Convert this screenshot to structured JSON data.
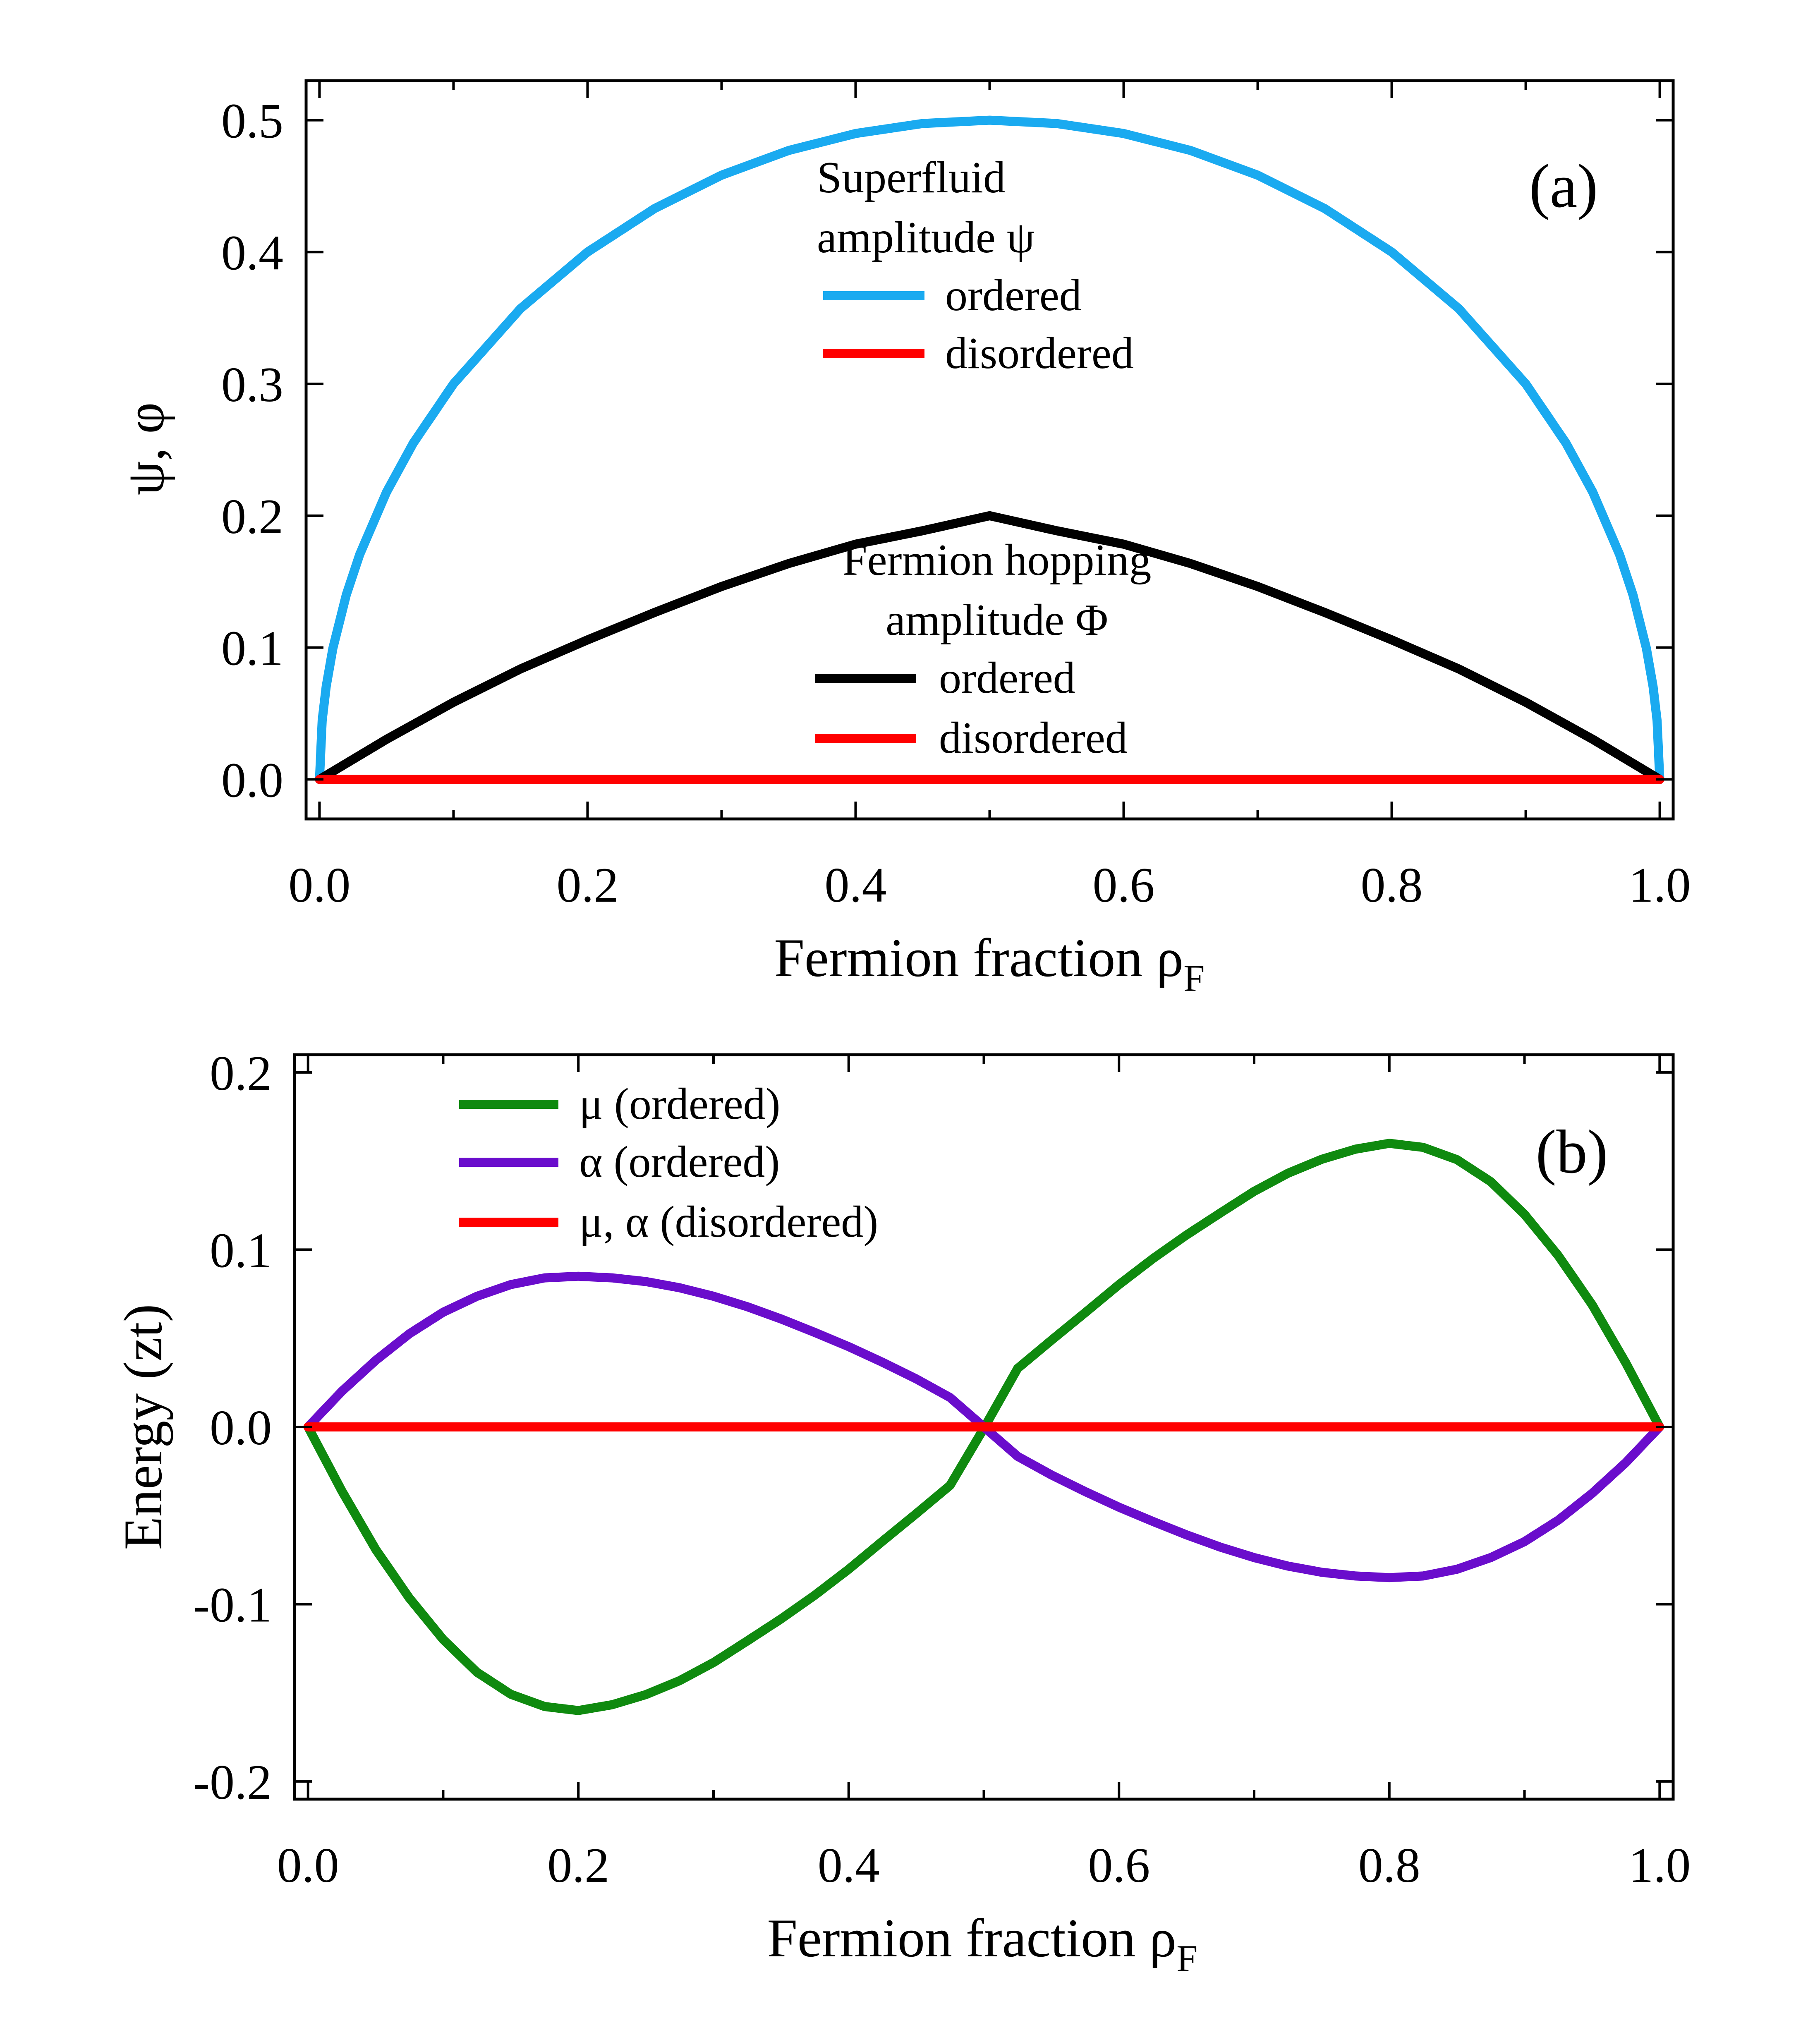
{
  "chart_data": [
    {
      "panel": "(a)",
      "type": "line",
      "xlabel": "Fermion fraction ρ",
      "xlabel_sub": "F",
      "ylabel": "ψ, φ",
      "xlim": [
        -0.01,
        1.01
      ],
      "ylim": [
        -0.03,
        0.53
      ],
      "xticks": [
        0.0,
        0.2,
        0.4,
        0.6,
        0.8,
        1.0
      ],
      "xtick_labels": [
        "0.0",
        "0.2",
        "0.4",
        "0.6",
        "0.8",
        "1.0"
      ],
      "yticks": [
        0.0,
        0.1,
        0.2,
        0.3,
        0.4,
        0.5
      ],
      "ytick_labels": [
        "0.0",
        "0.1",
        "0.2",
        "0.3",
        "0.4",
        "0.5"
      ],
      "legend_groups": [
        {
          "title_lines": [
            "Superfluid",
            "amplitude ψ"
          ],
          "entries": [
            "ordered",
            "disordered"
          ]
        },
        {
          "title_lines": [
            "Fermion hopping",
            "amplitude Φ"
          ],
          "entries": [
            "ordered",
            "disordered"
          ]
        }
      ],
      "series": [
        {
          "name": "ψ ordered",
          "color": "#1aaaf0",
          "x": [
            0,
            0.002,
            0.005,
            0.01,
            0.02,
            0.03,
            0.05,
            0.07,
            0.1,
            0.15,
            0.2,
            0.25,
            0.3,
            0.35,
            0.4,
            0.45,
            0.5,
            0.55,
            0.6,
            0.65,
            0.7,
            0.75,
            0.8,
            0.85,
            0.9,
            0.93,
            0.95,
            0.97,
            0.98,
            0.99,
            0.995,
            0.998,
            1.0
          ],
          "y": [
            0,
            0.0447,
            0.0705,
            0.0995,
            0.14,
            0.1706,
            0.2179,
            0.2551,
            0.3,
            0.3571,
            0.4,
            0.433,
            0.4583,
            0.477,
            0.4899,
            0.4975,
            0.5,
            0.4975,
            0.4899,
            0.477,
            0.4583,
            0.433,
            0.4,
            0.3571,
            0.3,
            0.2551,
            0.2179,
            0.1706,
            0.14,
            0.0995,
            0.0705,
            0.0447,
            0
          ]
        },
        {
          "name": "ψ disordered",
          "color": "#ff0000",
          "x": [
            0,
            1
          ],
          "y": [
            0,
            0
          ]
        },
        {
          "name": "Φ ordered",
          "color": "#000000",
          "x": [
            0,
            0.05,
            0.1,
            0.15,
            0.2,
            0.25,
            0.3,
            0.35,
            0.4,
            0.45,
            0.5,
            0.55,
            0.6,
            0.65,
            0.7,
            0.75,
            0.8,
            0.85,
            0.9,
            0.95,
            1.0
          ],
          "y": [
            0,
            0.0304,
            0.0585,
            0.0838,
            0.1058,
            0.1266,
            0.1463,
            0.1637,
            0.1784,
            0.1886,
            0.2,
            0.1886,
            0.1784,
            0.1637,
            0.1463,
            0.1266,
            0.1058,
            0.0838,
            0.0585,
            0.0304,
            0
          ]
        },
        {
          "name": "Φ disordered",
          "color": "#ff0000",
          "x": [
            0,
            1
          ],
          "y": [
            0,
            0
          ]
        }
      ]
    },
    {
      "panel": "(b)",
      "type": "line",
      "xlabel": "Fermion fraction ρ",
      "xlabel_sub": "F",
      "ylabel": "Energy (zt)",
      "xlim": [
        -0.01,
        1.01
      ],
      "ylim": [
        -0.21,
        0.21
      ],
      "xticks": [
        0.0,
        0.2,
        0.4,
        0.6,
        0.8,
        1.0
      ],
      "xtick_labels": [
        "0.0",
        "0.2",
        "0.4",
        "0.6",
        "0.8",
        "1.0"
      ],
      "yticks": [
        -0.2,
        -0.1,
        0.0,
        0.1,
        0.2
      ],
      "ytick_labels": [
        "-0.2",
        "-0.1",
        "0.0",
        "0.1",
        "0.2"
      ],
      "legend": [
        "μ (ordered)",
        "α (ordered)",
        "μ, α (disordered)"
      ],
      "series": [
        {
          "name": "μ (ordered)",
          "color": "#0f8a0f",
          "x": [
            0,
            0.025,
            0.05,
            0.075,
            0.1,
            0.125,
            0.15,
            0.175,
            0.2,
            0.225,
            0.25,
            0.275,
            0.3,
            0.325,
            0.35,
            0.375,
            0.4,
            0.425,
            0.45,
            0.475,
            0.5,
            0.525,
            0.55,
            0.575,
            0.6,
            0.625,
            0.65,
            0.675,
            0.7,
            0.725,
            0.75,
            0.775,
            0.8,
            0.825,
            0.85,
            0.875,
            0.9,
            0.925,
            0.95,
            0.975,
            1.0
          ],
          "y": [
            0,
            -0.0361,
            -0.069,
            -0.0966,
            -0.1199,
            -0.1384,
            -0.1508,
            -0.1577,
            -0.16,
            -0.1567,
            -0.151,
            -0.1431,
            -0.1329,
            -0.1207,
            -0.1083,
            -0.0949,
            -0.0803,
            -0.0645,
            -0.0489,
            -0.033,
            -0.0008,
            0.033,
            0.0489,
            0.0645,
            0.0803,
            0.0949,
            0.1083,
            0.1207,
            0.1329,
            0.1431,
            0.151,
            0.1567,
            0.16,
            0.1577,
            0.1508,
            0.1384,
            0.1199,
            0.0966,
            0.069,
            0.0361,
            0
          ]
        },
        {
          "name": "α (ordered)",
          "color": "#6a0dcc",
          "x": [
            0,
            0.025,
            0.05,
            0.075,
            0.1,
            0.125,
            0.15,
            0.175,
            0.2,
            0.225,
            0.25,
            0.275,
            0.3,
            0.325,
            0.35,
            0.375,
            0.4,
            0.425,
            0.45,
            0.475,
            0.5,
            0.525,
            0.55,
            0.575,
            0.6,
            0.625,
            0.65,
            0.675,
            0.7,
            0.725,
            0.75,
            0.775,
            0.8,
            0.825,
            0.85,
            0.875,
            0.9,
            0.925,
            0.95,
            0.975,
            1.0
          ],
          "y": [
            0,
            0.0201,
            0.0375,
            0.0526,
            0.0647,
            0.0737,
            0.0803,
            0.0841,
            0.085,
            0.0841,
            0.082,
            0.0785,
            0.0737,
            0.0678,
            0.0609,
            0.0533,
            0.0453,
            0.0365,
            0.0271,
            0.0166,
            0,
            -0.0166,
            -0.0271,
            -0.0365,
            -0.0453,
            -0.0533,
            -0.0609,
            -0.0678,
            -0.0737,
            -0.0785,
            -0.082,
            -0.0841,
            -0.085,
            -0.0841,
            -0.0803,
            -0.0737,
            -0.0647,
            -0.0526,
            -0.0375,
            -0.0201,
            0
          ]
        },
        {
          "name": "μ, α (disordered)",
          "color": "#ff0000",
          "x": [
            0,
            1
          ],
          "y": [
            0,
            0
          ]
        }
      ]
    }
  ]
}
